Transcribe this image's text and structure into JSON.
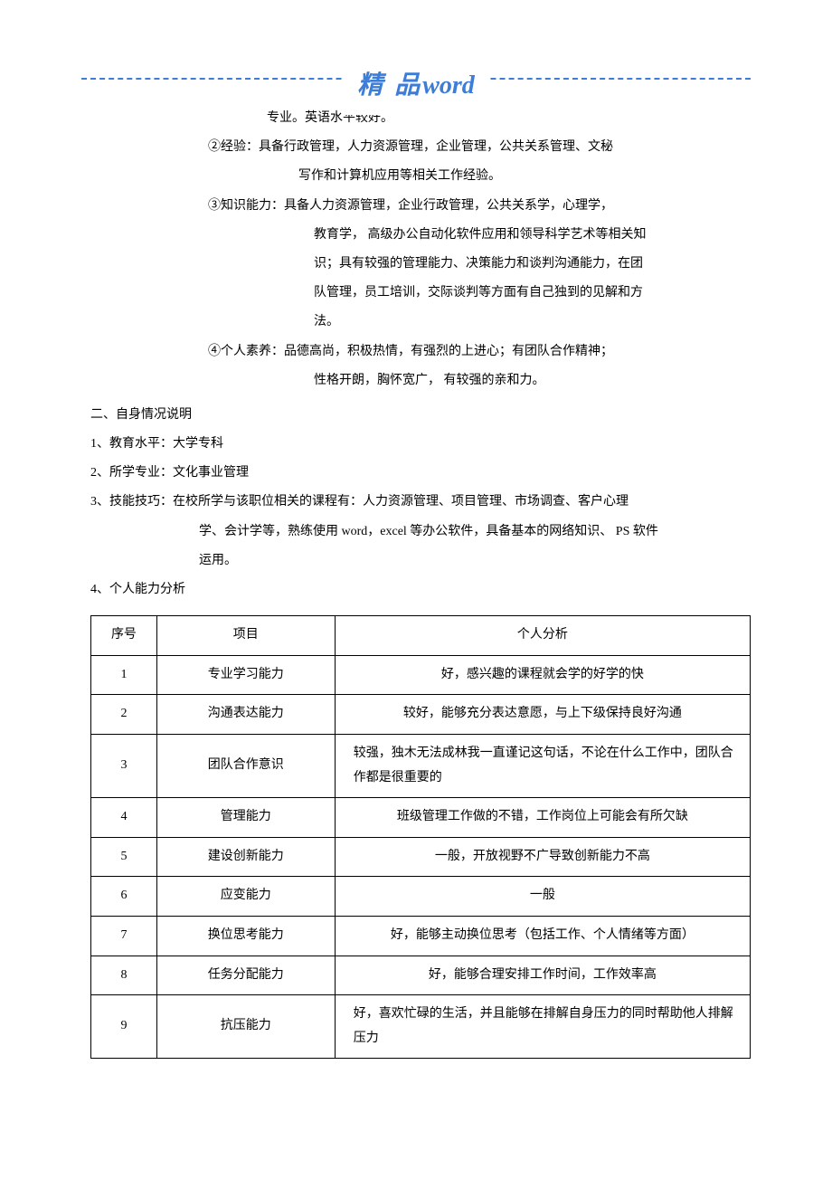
{
  "header": {
    "title_cn": "精 品",
    "title_en": "word",
    "border_color": "#3b7dd8",
    "text_color": "#3b7dd8"
  },
  "body": {
    "line1": "专业。英语水平较好。",
    "item2_label": "②经验：",
    "item2_text": "具备行政管理，人力资源管理，企业管理，公共关系管理、文秘",
    "item2b": "写作和计算机应用等相关工作经验。",
    "item3_label": "③知识能力：",
    "item3_text": "具备人力资源管理，企业行政管理，公共关系学，心理学，",
    "item3b": "教育学，  高级办公自动化软件应用和领导科学艺术等相关知",
    "item3c": "识；具有较强的管理能力、决策能力和谈判沟通能力，在团",
    "item3d": "队管理，员工培训，交际谈判等方面有自己独到的见解和方",
    "item3e": "法。",
    "item4_label": "④个人素养：",
    "item4_text": "品德高尚，积极热情，有强烈的上进心；有团队合作精神；",
    "item4b": "性格开朗，胸怀宽广，      有较强的亲和力。"
  },
  "section2": {
    "title": "二、自身情况说明",
    "edu": "1、教育水平：大学专科",
    "major": "2、所学专业：文化事业管理",
    "skill_a": "3、技能技巧：在校所学与该职位相关的课程有：人力资源管理、项目管理、市场调查、客户心理",
    "skill_b": "学、会计学等，熟练使用    word，excel 等办公软件，具备基本的网络知识、     PS 软件",
    "skill_c": "运用。",
    "analysis_title": "4、个人能力分析"
  },
  "table": {
    "headers": [
      "序号",
      "项目",
      "个人分析"
    ],
    "col_widths": [
      "10%",
      "27%",
      "63%"
    ],
    "border_color": "#000000",
    "rows": [
      {
        "n": "1",
        "item": "专业学习能力",
        "analysis": "好，感兴趣的课程就会学的好学的快"
      },
      {
        "n": "2",
        "item": "沟通表达能力",
        "analysis": "较好，能够充分表达意愿，与上下级保持良好沟通"
      },
      {
        "n": "3",
        "item": "团队合作意识",
        "analysis": "较强，独木无法成林我一直谨记这句话，不论在什么工作中，团队合作都是很重要的"
      },
      {
        "n": "4",
        "item": "管理能力",
        "analysis": "班级管理工作做的不错，工作岗位上可能会有所欠缺"
      },
      {
        "n": "5",
        "item": "建设创新能力",
        "analysis": "一般，开放视野不广导致创新能力不高"
      },
      {
        "n": "6",
        "item": "应变能力",
        "analysis": "一般"
      },
      {
        "n": "7",
        "item": "换位思考能力",
        "analysis": "好，能够主动换位思考（包括工作、个人情绪等方面）"
      },
      {
        "n": "8",
        "item": "任务分配能力",
        "analysis": "好，能够合理安排工作时间，工作效率高"
      },
      {
        "n": "9",
        "item": "抗压能力",
        "analysis": "好，喜欢忙碌的生活，并且能够在排解自身压力的同时帮助他人排解压力"
      }
    ]
  }
}
